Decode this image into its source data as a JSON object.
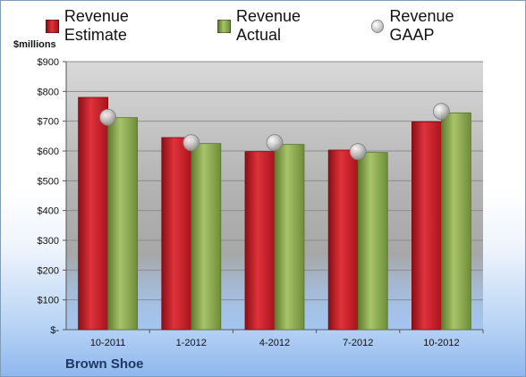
{
  "chart_data": {
    "type": "bar",
    "ylabel": "$millions",
    "ylim": [
      0,
      900
    ],
    "y_ticks": [
      0,
      100,
      200,
      300,
      400,
      500,
      600,
      700,
      800,
      900
    ],
    "y_tick_labels": [
      "$-",
      "$100",
      "$200",
      "$300",
      "$400",
      "$500",
      "$600",
      "$700",
      "$800",
      "$900"
    ],
    "categories": [
      "10-2011",
      "1-2012",
      "4-2012",
      "7-2012",
      "10-2012"
    ],
    "series": [
      {
        "name": "Revenue Estimate",
        "kind": "bar",
        "color": "#c8202a",
        "values": [
          780,
          645,
          598,
          603,
          698
        ]
      },
      {
        "name": "Revenue Actual",
        "kind": "bar",
        "color": "#8faa54",
        "values": [
          712,
          625,
          622,
          595,
          728
        ]
      },
      {
        "name": "Revenue GAAP",
        "kind": "marker",
        "color": "#b0b0b0",
        "values": [
          713,
          628,
          628,
          598,
          733
        ]
      }
    ],
    "grid": true,
    "legend_position": "top"
  },
  "footer": {
    "company": "Brown Shoe"
  }
}
